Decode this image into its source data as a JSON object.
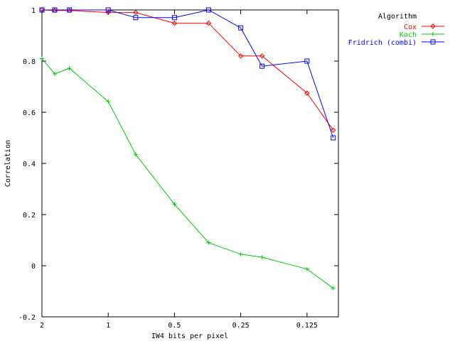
{
  "chart_data": {
    "type": "line",
    "xlabel": "IW4 bits per pixel",
    "ylabel": "Correlation",
    "xscale": "log2-reversed",
    "xlim": [
      2,
      0.09
    ],
    "ylim": [
      -0.2,
      1
    ],
    "x_ticks": [
      {
        "value": 2,
        "label": "2"
      },
      {
        "value": 1,
        "label": "1"
      },
      {
        "value": 0.5,
        "label": "0.5"
      },
      {
        "value": 0.25,
        "label": "0.25"
      },
      {
        "value": 0.125,
        "label": "0.125"
      }
    ],
    "y_ticks": [
      {
        "value": -0.2,
        "label": "-0.2"
      },
      {
        "value": 0,
        "label": "0"
      },
      {
        "value": 0.2,
        "label": "0.2"
      },
      {
        "value": 0.4,
        "label": "0.4"
      },
      {
        "value": 0.6,
        "label": "0.6"
      },
      {
        "value": 0.8,
        "label": "0.8"
      },
      {
        "value": 1,
        "label": "1"
      }
    ],
    "legend": {
      "title": "Algorithm",
      "placement": "top-right outside"
    },
    "grid": false,
    "series": [
      {
        "name": "Cox",
        "color": "#ff0000",
        "marker": "diamond",
        "points": [
          [
            2,
            1.0
          ],
          [
            1.75,
            0.998
          ],
          [
            1.5,
            0.998
          ],
          [
            1.0,
            0.99
          ],
          [
            0.75,
            0.99
          ],
          [
            0.5,
            0.948
          ],
          [
            0.35,
            0.948
          ],
          [
            0.25,
            0.82
          ],
          [
            0.2,
            0.82
          ],
          [
            0.125,
            0.675
          ],
          [
            0.095,
            0.53
          ]
        ]
      },
      {
        "name": "Koch",
        "color": "#00cc00",
        "marker": "plus",
        "points": [
          [
            2,
            0.81
          ],
          [
            1.75,
            0.75
          ],
          [
            1.5,
            0.772
          ],
          [
            1.0,
            0.642
          ],
          [
            0.75,
            0.435
          ],
          [
            0.5,
            0.24
          ],
          [
            0.35,
            0.09
          ],
          [
            0.25,
            0.045
          ],
          [
            0.2,
            0.033
          ],
          [
            0.125,
            -0.013
          ],
          [
            0.095,
            -0.088
          ]
        ]
      },
      {
        "name": "Fridrich (combi)",
        "color": "#0000ff",
        "marker": "square",
        "points": [
          [
            2,
            1.0
          ],
          [
            1.75,
            1.0
          ],
          [
            1.5,
            1.0
          ],
          [
            1.0,
            1.0
          ],
          [
            0.75,
            0.97
          ],
          [
            0.5,
            0.97
          ],
          [
            0.35,
            1.0
          ],
          [
            0.25,
            0.93
          ],
          [
            0.2,
            0.78
          ],
          [
            0.125,
            0.8
          ],
          [
            0.095,
            0.5
          ]
        ]
      }
    ]
  }
}
